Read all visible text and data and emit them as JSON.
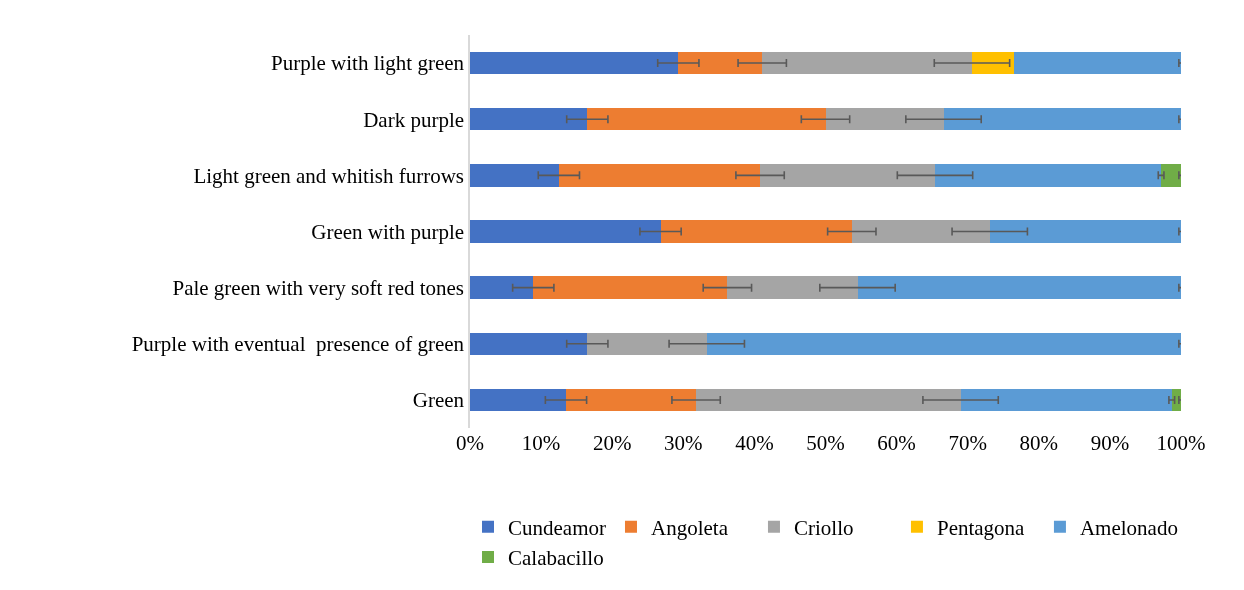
{
  "chart_data": {
    "type": "bar",
    "orientation": "horizontal",
    "stacked": true,
    "categories": [
      "Purple with light green",
      "Dark purple",
      "Light green and whitish furrows",
      "Green with purple",
      "Pale green with very soft red tones",
      "Purple with eventual  presence of green",
      "Green"
    ],
    "series": [
      {
        "name": "Cundeamor",
        "color": "#4472c4",
        "values": [
          29.3,
          16.5,
          12.5,
          26.8,
          8.9,
          16.5,
          13.5
        ],
        "errors": [
          2.9,
          2.9,
          2.9,
          2.9,
          2.9,
          2.9,
          2.9
        ]
      },
      {
        "name": "Angoleta",
        "color": "#ed7d31",
        "values": [
          11.8,
          33.5,
          28.3,
          26.9,
          27.3,
          null,
          18.3
        ],
        "errors": [
          3.4,
          3.4,
          3.4,
          3.4,
          3.4,
          null,
          3.4
        ]
      },
      {
        "name": "Criollo",
        "color": "#a5a5a5",
        "values": [
          29.5,
          16.6,
          24.6,
          19.4,
          18.3,
          16.8,
          37.2
        ],
        "errors": [
          5.3,
          5.3,
          5.3,
          5.3,
          5.3,
          5.3,
          5.3
        ]
      },
      {
        "name": "Pentagona",
        "color": "#ffc000",
        "values": [
          5.9,
          null,
          null,
          null,
          null,
          null,
          null
        ]
      },
      {
        "name": "Amelonado",
        "color": "#5b9bd5",
        "values": [
          23.5,
          33.4,
          31.8,
          26.9,
          45.5,
          66.7,
          29.7
        ],
        "errors": [
          0.3,
          0.3,
          0.4,
          0.3,
          0.3,
          0.3,
          0.4
        ]
      },
      {
        "name": "Calabacillo",
        "color": "#70ad47",
        "values": [
          null,
          null,
          2.8,
          null,
          null,
          null,
          1.3
        ],
        "errors": [
          null,
          null,
          0.3,
          null,
          null,
          null,
          0.3
        ]
      }
    ],
    "xlim": [
      0,
      100
    ],
    "xticks": [
      {
        "value": 0,
        "label": "0%"
      },
      {
        "value": 10,
        "label": "10%"
      },
      {
        "value": 20,
        "label": "20%"
      },
      {
        "value": 30,
        "label": "30%"
      },
      {
        "value": 40,
        "label": "40%"
      },
      {
        "value": 50,
        "label": "50%"
      },
      {
        "value": 60,
        "label": "60%"
      },
      {
        "value": 70,
        "label": "70%"
      },
      {
        "value": 80,
        "label": "80%"
      },
      {
        "value": 90,
        "label": "90%"
      },
      {
        "value": 100,
        "label": "100%"
      }
    ],
    "grid": false,
    "legend": "bottom"
  }
}
